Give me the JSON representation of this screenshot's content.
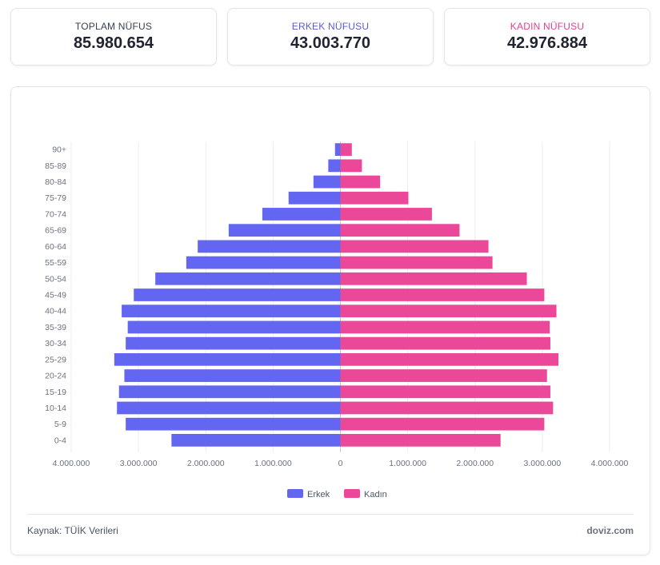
{
  "stats": [
    {
      "label": "TOPLAM NÜFUS",
      "value": "85.980.654",
      "color": "#374151"
    },
    {
      "label": "ERKEK NÜFUSU",
      "value": "43.003.770",
      "color": "#5b5bd6"
    },
    {
      "label": "KADIN NÜFUSU",
      "value": "42.976.884",
      "color": "#e0428f"
    }
  ],
  "chart_data": {
    "type": "bar",
    "orientation": "horizontal",
    "stacked": true,
    "title": "",
    "xlabel": "",
    "ylabel": "",
    "categories": [
      "90+",
      "85-89",
      "80-84",
      "75-79",
      "70-74",
      "65-69",
      "60-64",
      "55-59",
      "50-54",
      "45-49",
      "40-44",
      "35-39",
      "30-34",
      "25-29",
      "20-24",
      "15-19",
      "10-14",
      "5-9",
      "0-4"
    ],
    "series": [
      {
        "name": "Erkek",
        "color": "#6366f1",
        "values": [
          -80000,
          -180000,
          -400000,
          -770000,
          -1160000,
          -1660000,
          -2120000,
          -2290000,
          -2750000,
          -3070000,
          -3250000,
          -3160000,
          -3190000,
          -3360000,
          -3210000,
          -3290000,
          -3320000,
          -3190000,
          -2510000
        ]
      },
      {
        "name": "Kadın",
        "color": "#ec4899",
        "values": [
          170000,
          320000,
          590000,
          1010000,
          1360000,
          1770000,
          2200000,
          2260000,
          2770000,
          3030000,
          3210000,
          3110000,
          3120000,
          3240000,
          3070000,
          3120000,
          3160000,
          3030000,
          2380000
        ]
      }
    ],
    "xlim": [
      -4000000,
      4000000
    ],
    "xticks": [
      {
        "value": -4000000,
        "label": "4.000.000"
      },
      {
        "value": -3000000,
        "label": "3.000.000"
      },
      {
        "value": -2000000,
        "label": "2.000.000"
      },
      {
        "value": -1000000,
        "label": "1.000.000"
      },
      {
        "value": 0,
        "label": "0"
      },
      {
        "value": 1000000,
        "label": "1.000.000"
      },
      {
        "value": 2000000,
        "label": "2.000.000"
      },
      {
        "value": 3000000,
        "label": "3.000.000"
      },
      {
        "value": 4000000,
        "label": "4.000.000"
      }
    ],
    "grid": true,
    "legend": "bottom-center"
  },
  "footer": {
    "source": "Kaynak: TÜİK Verileri",
    "brand": "doviz.com"
  }
}
